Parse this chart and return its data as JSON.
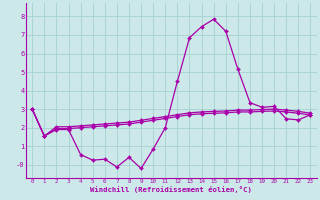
{
  "xlabel": "Windchill (Refroidissement éolien,°C)",
  "background_color": "#cce8e8",
  "grid_color": "#aad4d4",
  "line_color": "#aa00aa",
  "spine_color": "#aa00aa",
  "xlim": [
    -0.5,
    23.5
  ],
  "ylim": [
    -0.7,
    8.7
  ],
  "yticks": [
    0,
    1,
    2,
    3,
    4,
    5,
    6,
    7,
    8
  ],
  "ytick_labels": [
    "-0",
    "1",
    "2",
    "3",
    "4",
    "5",
    "6",
    "7",
    "8"
  ],
  "xticks": [
    0,
    1,
    2,
    3,
    4,
    5,
    6,
    7,
    8,
    9,
    10,
    11,
    12,
    13,
    14,
    15,
    16,
    17,
    18,
    19,
    20,
    21,
    22,
    23
  ],
  "series1_x": [
    0,
    1,
    2,
    3,
    4,
    5,
    6,
    7,
    8,
    9,
    10,
    11,
    12,
    13,
    14,
    15,
    16,
    17,
    18,
    19,
    20,
    21,
    22,
    23
  ],
  "series1_y": [
    3.0,
    1.55,
    1.9,
    1.9,
    0.55,
    0.25,
    0.3,
    -0.12,
    0.4,
    -0.2,
    0.85,
    2.0,
    4.5,
    6.85,
    7.45,
    7.85,
    7.2,
    5.15,
    3.35,
    3.1,
    3.15,
    2.48,
    2.42,
    2.7
  ],
  "series2_x": [
    0,
    1,
    2,
    3,
    4,
    5,
    6,
    7,
    8,
    9,
    10,
    11,
    12,
    13,
    14,
    15,
    16,
    17,
    18,
    19,
    20,
    21,
    22,
    23
  ],
  "series2_y": [
    3.0,
    1.55,
    2.05,
    2.05,
    2.1,
    2.15,
    2.2,
    2.25,
    2.3,
    2.4,
    2.5,
    2.6,
    2.7,
    2.8,
    2.85,
    2.88,
    2.9,
    2.95,
    2.95,
    2.98,
    3.0,
    2.95,
    2.88,
    2.78
  ],
  "series3_x": [
    0,
    1,
    2,
    3,
    4,
    5,
    6,
    7,
    8,
    9,
    10,
    11,
    12,
    13,
    14,
    15,
    16,
    17,
    18,
    19,
    20,
    21,
    22,
    23
  ],
  "series3_y": [
    3.0,
    1.55,
    1.95,
    1.95,
    2.0,
    2.05,
    2.1,
    2.15,
    2.2,
    2.3,
    2.4,
    2.5,
    2.6,
    2.7,
    2.75,
    2.78,
    2.8,
    2.85,
    2.85,
    2.88,
    2.9,
    2.85,
    2.78,
    2.68
  ]
}
